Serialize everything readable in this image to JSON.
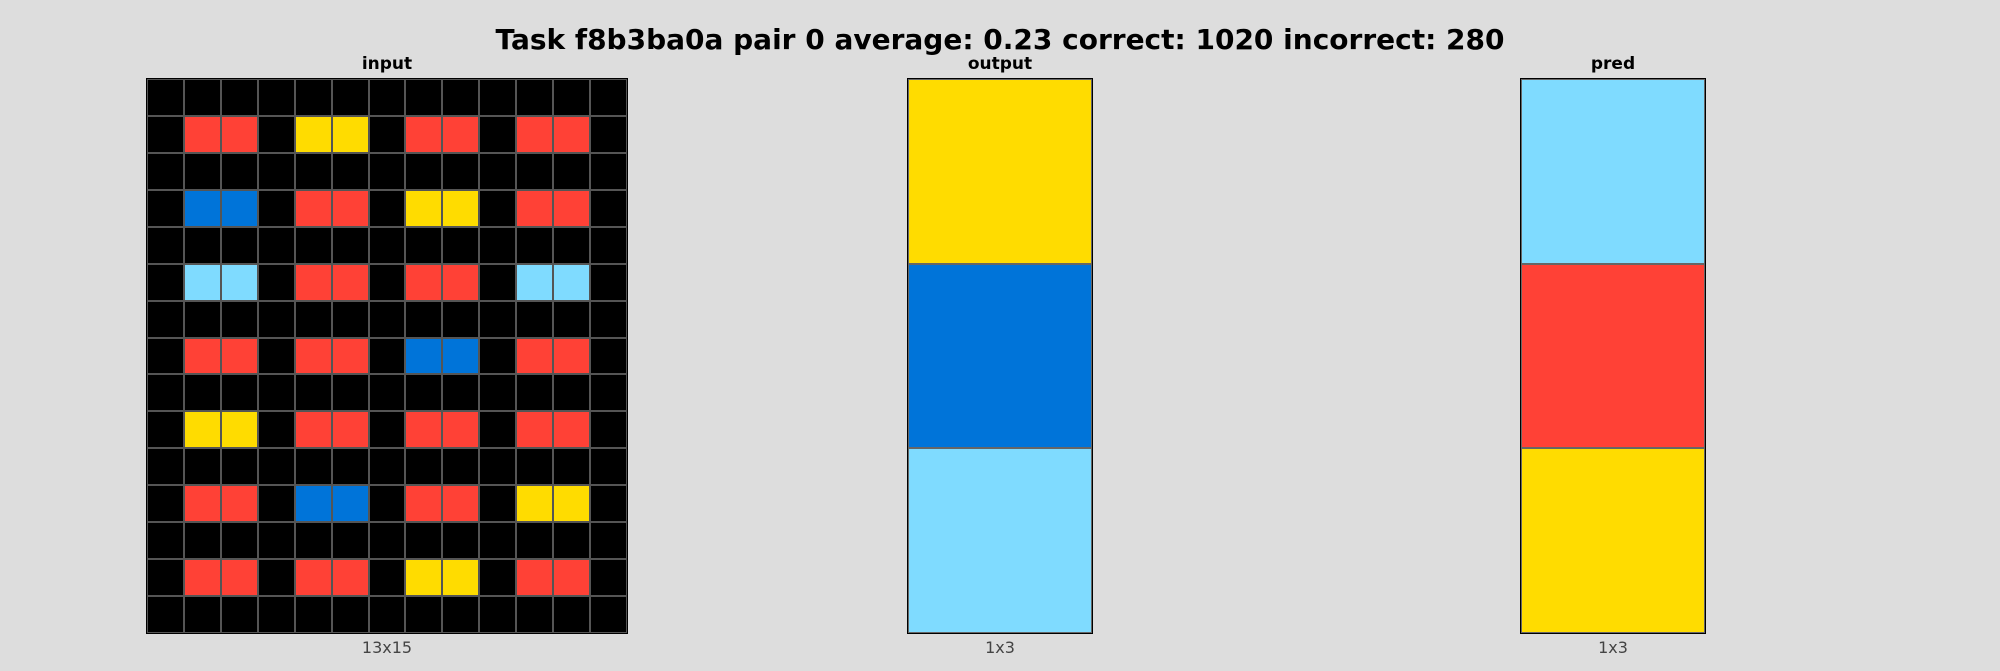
{
  "title": "Task f8b3ba0a pair 0 average: 0.23 correct: 1020 incorrect: 280",
  "colors": {
    "0": "#000000",
    "1": "#0074D9",
    "2": "#FF4136",
    "3": "#FFDC00",
    "4": "#7FDBFF"
  },
  "panels": [
    {
      "key": "input",
      "title": "input",
      "size_label": "13x15",
      "rows": [
        [
          0,
          0,
          0,
          0,
          0,
          0,
          0,
          0,
          0,
          0,
          0,
          0,
          0
        ],
        [
          0,
          2,
          2,
          0,
          3,
          3,
          0,
          2,
          2,
          0,
          2,
          2,
          0
        ],
        [
          0,
          0,
          0,
          0,
          0,
          0,
          0,
          0,
          0,
          0,
          0,
          0,
          0
        ],
        [
          0,
          1,
          1,
          0,
          2,
          2,
          0,
          3,
          3,
          0,
          2,
          2,
          0
        ],
        [
          0,
          0,
          0,
          0,
          0,
          0,
          0,
          0,
          0,
          0,
          0,
          0,
          0
        ],
        [
          0,
          4,
          4,
          0,
          2,
          2,
          0,
          2,
          2,
          0,
          4,
          4,
          0
        ],
        [
          0,
          0,
          0,
          0,
          0,
          0,
          0,
          0,
          0,
          0,
          0,
          0,
          0
        ],
        [
          0,
          2,
          2,
          0,
          2,
          2,
          0,
          1,
          1,
          0,
          2,
          2,
          0
        ],
        [
          0,
          0,
          0,
          0,
          0,
          0,
          0,
          0,
          0,
          0,
          0,
          0,
          0
        ],
        [
          0,
          3,
          3,
          0,
          2,
          2,
          0,
          2,
          2,
          0,
          2,
          2,
          0
        ],
        [
          0,
          0,
          0,
          0,
          0,
          0,
          0,
          0,
          0,
          0,
          0,
          0,
          0
        ],
        [
          0,
          2,
          2,
          0,
          1,
          1,
          0,
          2,
          2,
          0,
          3,
          3,
          0
        ],
        [
          0,
          0,
          0,
          0,
          0,
          0,
          0,
          0,
          0,
          0,
          0,
          0,
          0
        ],
        [
          0,
          2,
          2,
          0,
          2,
          2,
          0,
          3,
          3,
          0,
          2,
          2,
          0
        ],
        [
          0,
          0,
          0,
          0,
          0,
          0,
          0,
          0,
          0,
          0,
          0,
          0,
          0
        ]
      ]
    },
    {
      "key": "output",
      "title": "output",
      "size_label": "1x3",
      "rows": [
        [
          3
        ],
        [
          1
        ],
        [
          4
        ]
      ]
    },
    {
      "key": "pred",
      "title": "pred",
      "size_label": "1x3",
      "rows": [
        [
          4
        ],
        [
          2
        ],
        [
          3
        ]
      ]
    }
  ]
}
